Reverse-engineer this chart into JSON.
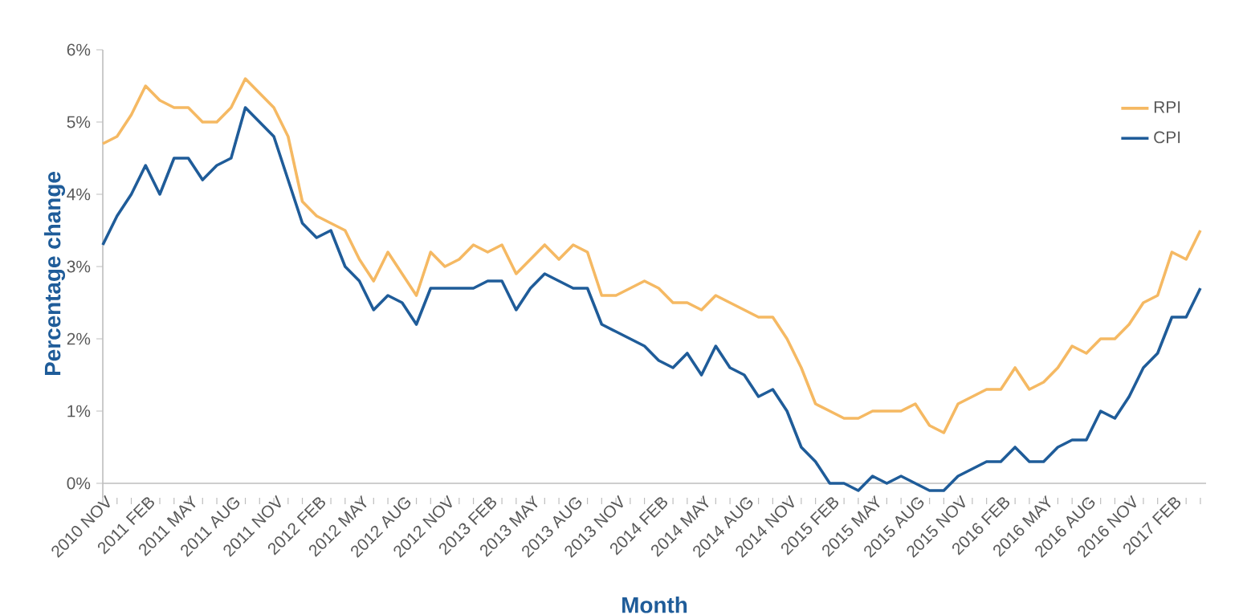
{
  "chart_data": {
    "type": "line",
    "xlabel": "Month",
    "ylabel": "Percentage change",
    "categories": [
      "2010 NOV",
      null,
      null,
      "2011 FEB",
      null,
      null,
      "2011 MAY",
      null,
      null,
      "2011 AUG",
      null,
      null,
      "2011 NOV",
      null,
      null,
      "2012 FEB",
      null,
      null,
      "2012 MAY",
      null,
      null,
      "2012 AUG",
      null,
      null,
      "2012 NOV",
      null,
      null,
      "2013 FEB",
      null,
      null,
      "2013 MAY",
      null,
      null,
      "2013 AUG",
      null,
      null,
      "2013 NOV",
      null,
      null,
      "2014 FEB",
      null,
      null,
      "2014 MAY",
      null,
      null,
      "2014 AUG",
      null,
      null,
      "2014 NOV",
      null,
      null,
      "2015 FEB",
      null,
      null,
      "2015 MAY",
      null,
      null,
      "2015 AUG",
      null,
      null,
      "2015 NOV",
      null,
      null,
      "2016 FEB",
      null,
      null,
      "2016 MAY",
      null,
      null,
      "2016 AUG",
      null,
      null,
      "2016 NOV",
      null,
      null,
      "2017 FEB",
      null,
      null
    ],
    "series": [
      {
        "name": "RPI",
        "color": "#f5b963",
        "values": [
          4.7,
          4.8,
          5.1,
          5.5,
          5.3,
          5.2,
          5.2,
          5.0,
          5.0,
          5.2,
          5.6,
          5.4,
          5.2,
          4.8,
          3.9,
          3.7,
          3.6,
          3.5,
          3.1,
          2.8,
          3.2,
          2.9,
          2.6,
          3.2,
          3.0,
          3.1,
          3.3,
          3.2,
          3.3,
          2.9,
          3.1,
          3.3,
          3.1,
          3.3,
          3.2,
          2.6,
          2.6,
          2.7,
          2.8,
          2.7,
          2.5,
          2.5,
          2.4,
          2.6,
          2.5,
          2.4,
          2.3,
          2.3,
          2.0,
          1.6,
          1.1,
          1.0,
          0.9,
          0.9,
          1.0,
          1.0,
          1.0,
          1.1,
          0.8,
          0.7,
          1.1,
          1.2,
          1.3,
          1.3,
          1.6,
          1.3,
          1.4,
          1.6,
          1.9,
          1.8,
          2.0,
          2.0,
          2.2,
          2.5,
          2.6,
          3.2,
          3.1,
          3.5
        ]
      },
      {
        "name": "CPI",
        "color": "#1f5c99",
        "values": [
          3.3,
          3.7,
          4.0,
          4.4,
          4.0,
          4.5,
          4.5,
          4.2,
          4.4,
          4.5,
          5.2,
          5.0,
          4.8,
          4.2,
          3.6,
          3.4,
          3.5,
          3.0,
          2.8,
          2.4,
          2.6,
          2.5,
          2.2,
          2.7,
          2.7,
          2.7,
          2.7,
          2.8,
          2.8,
          2.4,
          2.7,
          2.9,
          2.8,
          2.7,
          2.7,
          2.2,
          2.1,
          2.0,
          1.9,
          1.7,
          1.6,
          1.8,
          1.5,
          1.9,
          1.6,
          1.5,
          1.2,
          1.3,
          1.0,
          0.5,
          0.3,
          0.0,
          0.0,
          -0.1,
          0.1,
          0.0,
          0.1,
          0.0,
          -0.1,
          -0.1,
          0.1,
          0.2,
          0.3,
          0.3,
          0.5,
          0.3,
          0.3,
          0.5,
          0.6,
          0.6,
          1.0,
          0.9,
          1.2,
          1.6,
          1.8,
          2.3,
          2.3,
          2.7
        ]
      }
    ],
    "ylim": [
      -0.2,
      6
    ],
    "yticks": [
      {
        "value": 0,
        "label": "0%"
      },
      {
        "value": 1,
        "label": "1%"
      },
      {
        "value": 2,
        "label": "2%"
      },
      {
        "value": 3,
        "label": "3%"
      },
      {
        "value": 4,
        "label": "4%"
      },
      {
        "value": 5,
        "label": "5%"
      },
      {
        "value": 6,
        "label": "6%"
      }
    ],
    "legend": "top right",
    "marker": "none",
    "line_style": "solid"
  }
}
